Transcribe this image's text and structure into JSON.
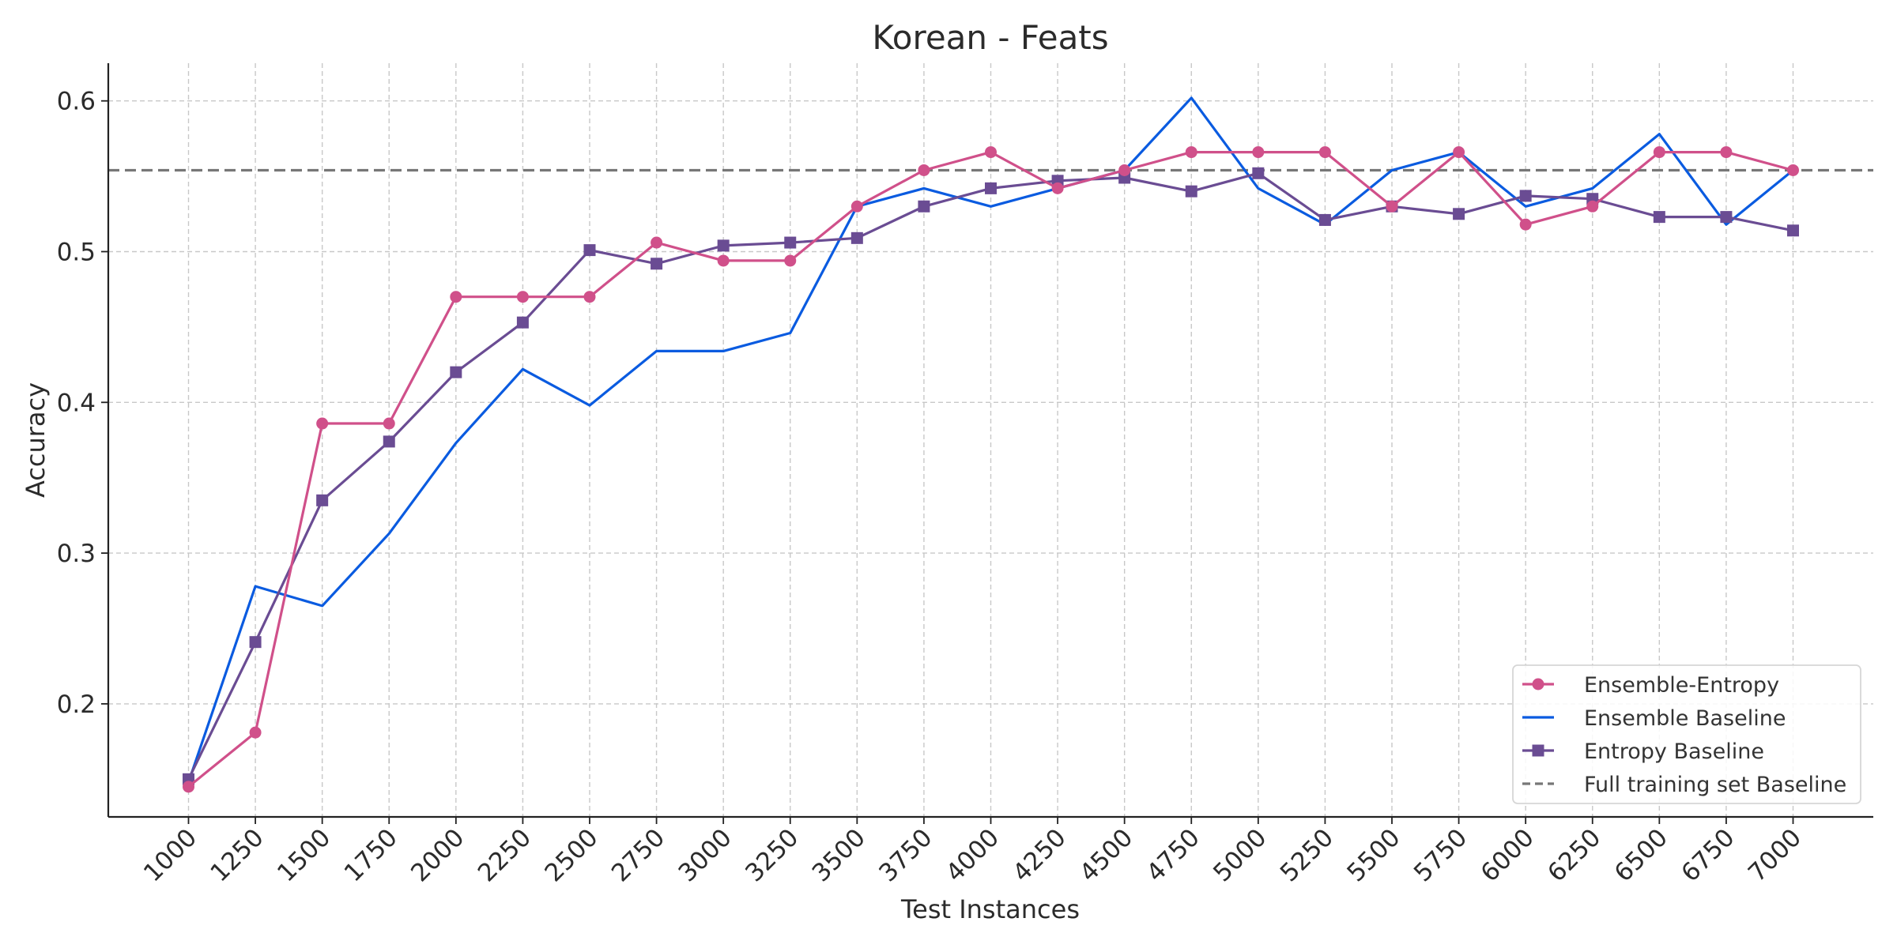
{
  "chart_data": {
    "type": "line",
    "title": "Korean - Feats",
    "xlabel": "Test Instances",
    "ylabel": "Accuracy",
    "x": [
      1000,
      1250,
      1500,
      1750,
      2000,
      2250,
      2500,
      2750,
      3000,
      3250,
      3500,
      3750,
      4000,
      4250,
      4500,
      4750,
      5000,
      5250,
      5500,
      5750,
      6000,
      6250,
      6500,
      6750,
      7000
    ],
    "x_tick_labels": [
      "1000",
      "1250",
      "1500",
      "1750",
      "2000",
      "2250",
      "2500",
      "2750",
      "3000",
      "3250",
      "3500",
      "3750",
      "4000",
      "4250",
      "4500",
      "4750",
      "5000",
      "5250",
      "5500",
      "5750",
      "6000",
      "6250",
      "6500",
      "6750",
      "7000"
    ],
    "xlim": [
      700,
      7300
    ],
    "ylim": [
      0.125,
      0.625
    ],
    "y_ticks": [
      0.2,
      0.3,
      0.4,
      0.5,
      0.6
    ],
    "y_tick_labels": [
      "0.2",
      "0.3",
      "0.4",
      "0.5",
      "0.6"
    ],
    "grid": true,
    "legend_position": "lower-right",
    "series": [
      {
        "name": "Ensemble-Entropy",
        "color": "#d0508a",
        "marker": "circle",
        "linestyle": "solid",
        "values": [
          0.145,
          0.181,
          0.386,
          0.386,
          0.47,
          0.47,
          0.47,
          0.506,
          0.494,
          0.494,
          0.53,
          0.554,
          0.566,
          0.542,
          0.554,
          0.566,
          0.566,
          0.566,
          0.53,
          0.566,
          0.518,
          0.53,
          0.566,
          0.566,
          0.554
        ]
      },
      {
        "name": "Ensemble Baseline",
        "color": "#0a5be0",
        "marker": "none",
        "linestyle": "solid",
        "values": [
          0.148,
          0.278,
          0.265,
          0.313,
          0.373,
          0.422,
          0.398,
          0.434,
          0.434,
          0.446,
          0.53,
          0.542,
          0.53,
          0.542,
          0.554,
          0.602,
          0.542,
          0.518,
          0.554,
          0.566,
          0.53,
          0.542,
          0.578,
          0.518,
          0.554
        ]
      },
      {
        "name": "Entropy Baseline",
        "color": "#6a4c93",
        "marker": "square",
        "linestyle": "solid",
        "values": [
          0.15,
          0.241,
          0.335,
          0.374,
          0.42,
          0.453,
          0.501,
          0.492,
          0.504,
          0.506,
          0.509,
          0.53,
          0.542,
          0.547,
          0.549,
          0.54,
          0.552,
          0.521,
          0.53,
          0.525,
          0.537,
          0.535,
          0.523,
          0.523,
          0.514
        ]
      },
      {
        "name": "Full training set Baseline",
        "color": "#777777",
        "marker": "none",
        "linestyle": "dashed",
        "constant": 0.554
      }
    ]
  }
}
